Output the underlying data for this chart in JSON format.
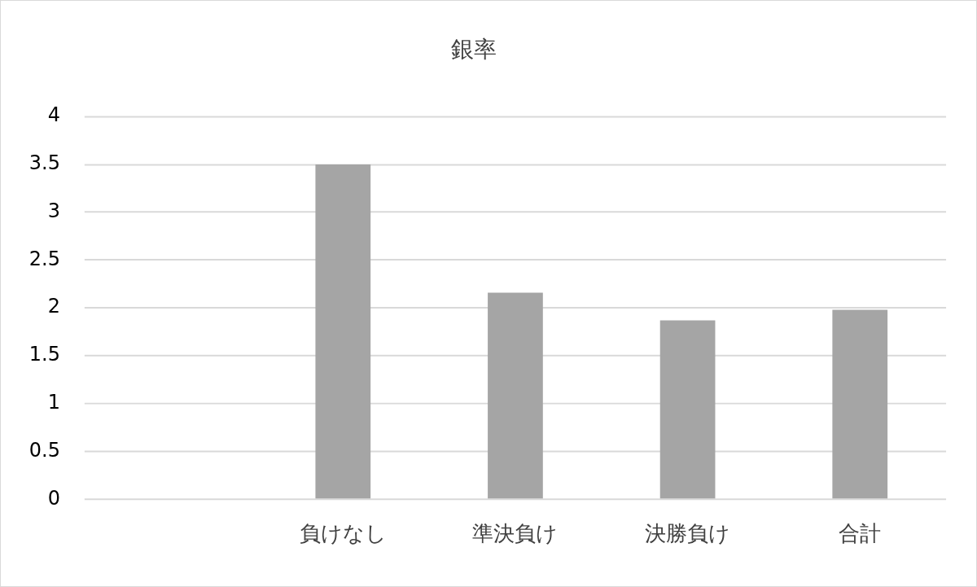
{
  "chart_data": {
    "type": "bar",
    "title": "銀率",
    "categories": [
      null,
      "負けなし",
      "準決負け",
      "決勝負け",
      "合計"
    ],
    "values": [
      null,
      3.5,
      2.16,
      1.87,
      1.98
    ],
    "color": "#a5a5a5",
    "ylim": [
      0,
      4
    ],
    "yticks": [
      0,
      0.5,
      1,
      1.5,
      2,
      2.5,
      3,
      3.5,
      4
    ],
    "grid": "y"
  }
}
